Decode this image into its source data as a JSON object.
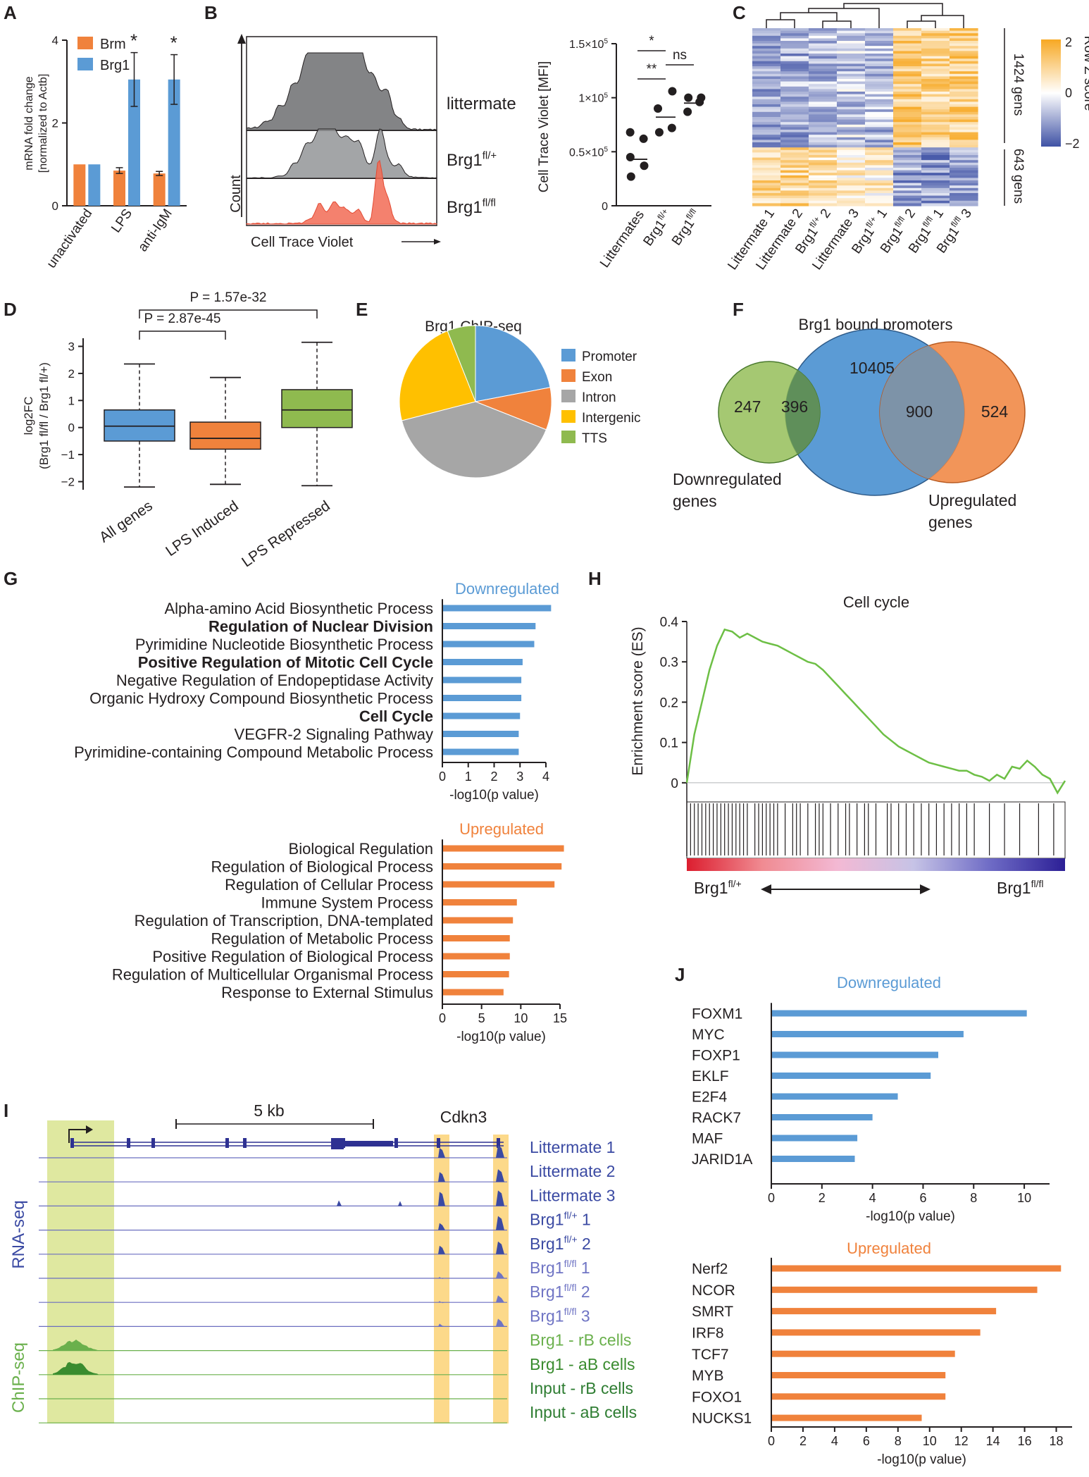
{
  "chart_data": [
    {
      "panel": "A",
      "type": "bar",
      "ylabel": "mRNA fold change",
      "ylabel2": "[normalized to Actb]",
      "ylim": [
        0,
        4
      ],
      "yticks": [
        0,
        2,
        4
      ],
      "categories": [
        "unactivated",
        "LPS",
        "anti-IgM"
      ],
      "series": [
        {
          "name": "Brm",
          "color": "#f0823c",
          "values": [
            1.0,
            0.85,
            0.78
          ],
          "errors": [
            0,
            0.07,
            0.05
          ]
        },
        {
          "name": "Brg1",
          "color": "#5b9bd5",
          "values": [
            1.0,
            3.05,
            3.05
          ],
          "errors": [
            0,
            0.65,
            0.6
          ]
        }
      ],
      "significance": [
        "",
        "*",
        "*"
      ]
    },
    {
      "panel": "B-hist",
      "type": "area",
      "xlabel": "Cell Trace Violet",
      "ylabel": "Count",
      "tracks": [
        {
          "name": "littermate",
          "base": "Brg1",
          "sup": "",
          "color": "#6d6e71"
        },
        {
          "name": "Brg1fl/+",
          "base": "Brg1",
          "sup": "fl/+",
          "color": "#939598"
        },
        {
          "name": "Brg1fl/fl",
          "base": "Brg1",
          "sup": "fl/fl",
          "color": "#f26b55"
        }
      ]
    },
    {
      "panel": "B-dot",
      "type": "scatter",
      "ylabel": "Cell Trace Violet [MFI]",
      "ylim": [
        0,
        150000
      ],
      "ytick_values": [
        0,
        50000,
        100000,
        150000
      ],
      "yticks": [
        {
          "base": "0",
          "exp": ""
        },
        {
          "base": "0.5×10",
          "exp": "5"
        },
        {
          "base": "1×10",
          "exp": "5"
        },
        {
          "base": "1.5×10",
          "exp": "5"
        }
      ],
      "groups": [
        {
          "base": "Littermates",
          "sup": "",
          "values": [
            27000,
            37000,
            45000,
            62000,
            68000
          ],
          "mean": 43000
        },
        {
          "base": "Brg1",
          "sup": "fl/+",
          "values": [
            68000,
            72000,
            90000,
            106000
          ],
          "mean": 82000
        },
        {
          "base": "Brg1",
          "sup": "fl/fl",
          "values": [
            87000,
            96000,
            100000,
            100000
          ],
          "mean": 95000
        }
      ],
      "significance": [
        {
          "label": "*",
          "from": 0,
          "to": 1
        },
        {
          "label": "**",
          "from": 0,
          "to": 1
        },
        {
          "label": "ns",
          "from": 1,
          "to": 2
        }
      ]
    },
    {
      "panel": "C",
      "type": "heatmap",
      "columns": [
        {
          "base": "Littermate 1",
          "sup": ""
        },
        {
          "base": "Littermate 2",
          "sup": ""
        },
        {
          "base": "Brg1",
          "sup": "fl/+",
          "suffix": " 2"
        },
        {
          "base": "Littermate 3",
          "sup": ""
        },
        {
          "base": "Brg1",
          "sup": "fl/+",
          "suffix": " 1"
        },
        {
          "base": "Brg1",
          "sup": "fl/fl",
          "suffix": " 2"
        },
        {
          "base": "Brg1",
          "sup": "fl/fl",
          "suffix": " 1"
        },
        {
          "base": "Brg1",
          "sup": "fl/fl",
          "suffix": " 3"
        }
      ],
      "row_groups": [
        "1424 gens",
        "643 gens"
      ],
      "legend_title": "Row Z score",
      "legend_ticks": [
        "2",
        "0",
        "−2"
      ],
      "colors": {
        "high": "#f7a823",
        "mid": "#ffffff",
        "low": "#3f52a5"
      }
    },
    {
      "panel": "D",
      "type": "box",
      "ylabel": "log2FC",
      "ylabel2": "(Brg1 fl/fl / Brg1 fl/+)",
      "ylim": [
        -2.3,
        3.3
      ],
      "yticks": [
        "−2",
        "−1",
        "0",
        "1",
        "2",
        "3"
      ],
      "ytick_values": [
        -2,
        -1,
        0,
        1,
        2,
        3
      ],
      "categories": [
        "All genes",
        "LPS Induced",
        "LPS Repressed"
      ],
      "boxes": [
        {
          "color": "#5b9bd5",
          "min": -2.2,
          "q1": -0.5,
          "median": 0.05,
          "q3": 0.65,
          "max": 2.35
        },
        {
          "color": "#f0823c",
          "min": -2.1,
          "q1": -0.8,
          "median": -0.4,
          "q3": 0.2,
          "max": 1.85
        },
        {
          "color": "#8fba4f",
          "min": -2.15,
          "q1": 0.0,
          "median": 0.65,
          "q3": 1.4,
          "max": 3.15
        }
      ],
      "pvalues": [
        {
          "label": "P = 2.87e-45",
          "from": 0,
          "to": 1
        },
        {
          "label": "P = 1.57e-32",
          "from": 0,
          "to": 2
        }
      ]
    },
    {
      "panel": "E",
      "type": "pie",
      "title": "Brg1 ChIP-seq",
      "labels": [
        "Promoter",
        "Exon",
        "Intron",
        "Intergenic",
        "TTS"
      ],
      "values": [
        22,
        9,
        40,
        23,
        6
      ],
      "colors": [
        "#5b9bd5",
        "#f0823c",
        "#a6a6a6",
        "#ffc000",
        "#8fba4f"
      ]
    },
    {
      "panel": "F",
      "type": "venn",
      "title": "Brg1 bound promoters",
      "sets": [
        {
          "name_lines": [
            "Downregulated",
            "genes"
          ],
          "color": "#8fba4f"
        },
        {
          "name_lines": [],
          "color": "#5b9bd5"
        },
        {
          "name_lines": [
            "Upregulated",
            "genes"
          ],
          "color": "#f0823c"
        }
      ],
      "counts": {
        "down_only": "247",
        "down_bound": "396",
        "bound_only": "10405",
        "up_bound": "900",
        "up_only": "524"
      }
    },
    {
      "panel": "G-down",
      "type": "bar",
      "title": "Downregulated",
      "color": "#5b9bd5",
      "title_color": "#5b9bd5",
      "xlabel": "-log10(p value)",
      "xlim": [
        0,
        4
      ],
      "xticks": [
        0,
        1,
        2,
        3,
        4
      ],
      "categories": [
        "Alpha-amino Acid Biosynthetic Process",
        "Regulation of Nuclear Division",
        "Pyrimidine Nucleotide Biosynthetic Process",
        "Positive Regulation of Mitotic Cell Cycle",
        "Negative Regulation of Endopeptidase Activity",
        "Organic Hydroxy Compound Biosynthetic Process",
        "Cell Cycle",
        "VEGFR-2 Signaling Pathway",
        "Pyrimidine-containing Compound Metabolic Process"
      ],
      "bold": [
        false,
        true,
        false,
        true,
        false,
        false,
        true,
        false,
        false
      ],
      "values": [
        4.2,
        3.6,
        3.55,
        3.1,
        3.05,
        3.05,
        3.0,
        2.95,
        2.95
      ]
    },
    {
      "panel": "G-up",
      "type": "bar",
      "title": "Upregulated",
      "color": "#f0823c",
      "title_color": "#f0823c",
      "xlabel": "-log10(p value)",
      "xlim": [
        0,
        15
      ],
      "xticks": [
        0,
        5,
        10,
        15
      ],
      "categories": [
        "Biological Regulation",
        "Regulation of Biological Process",
        "Regulation of Cellular Process",
        "Immune System Process",
        "Regulation of Transcription, DNA-templated",
        "Regulation of Metabolic Process",
        "Positive Regulation of Biological Process",
        "Regulation of Multicellular Organismal Process",
        "Response to External Stimulus"
      ],
      "bold": [
        false,
        false,
        false,
        false,
        false,
        false,
        false,
        false,
        false
      ],
      "values": [
        15.5,
        15.2,
        14.3,
        9.5,
        9.0,
        8.6,
        8.6,
        8.5,
        7.8
      ]
    },
    {
      "panel": "H",
      "type": "line",
      "title": "Cell cycle",
      "ylabel": "Enrichment score (ES)",
      "ylim": [
        -0.03,
        0.4
      ],
      "yticks": [
        "0",
        "0.1",
        "0.2",
        "0.3",
        "0.4"
      ],
      "ytick_values": [
        0,
        0.1,
        0.2,
        0.3,
        0.4
      ],
      "x": [
        0,
        2,
        4,
        6,
        8,
        10,
        12,
        14,
        16,
        18,
        20,
        22,
        24,
        26,
        28,
        30,
        32,
        34,
        36,
        38,
        40,
        42,
        44,
        46,
        48,
        50,
        52,
        54,
        56,
        58,
        60,
        62,
        64,
        66,
        68,
        70,
        72,
        74,
        76,
        78,
        80,
        82,
        84,
        86,
        88,
        90,
        92,
        94,
        96,
        98,
        100
      ],
      "es": [
        0.0,
        0.12,
        0.2,
        0.28,
        0.34,
        0.38,
        0.375,
        0.36,
        0.37,
        0.36,
        0.35,
        0.345,
        0.34,
        0.33,
        0.32,
        0.31,
        0.3,
        0.295,
        0.28,
        0.26,
        0.24,
        0.22,
        0.2,
        0.18,
        0.16,
        0.14,
        0.12,
        0.105,
        0.09,
        0.08,
        0.07,
        0.06,
        0.05,
        0.045,
        0.04,
        0.035,
        0.03,
        0.03,
        0.02,
        0.015,
        0.005,
        0.02,
        0.01,
        0.04,
        0.035,
        0.055,
        0.04,
        0.02,
        0.01,
        -0.025,
        0.005
      ],
      "hits": [
        1,
        2,
        3,
        4,
        5,
        6,
        7,
        8,
        9,
        10,
        11,
        12,
        13,
        14,
        15,
        16,
        18,
        19,
        20,
        21,
        22,
        23,
        24,
        26,
        28,
        29,
        30,
        32,
        34,
        35,
        36,
        38,
        40,
        42,
        43,
        45,
        47,
        48,
        50,
        53,
        54,
        56,
        58,
        60,
        62,
        64,
        66,
        68,
        70,
        72,
        74,
        76,
        80,
        84,
        88,
        93,
        97
      ],
      "gradient": [
        "#dc1e2f",
        "#f08b92",
        "#f3b9d4",
        "#c6c3e6",
        "#6f6cc6",
        "#2c1f96"
      ],
      "left_label": {
        "base": "Brg1",
        "sup": "fl/+"
      },
      "right_label": {
        "base": "Brg1",
        "sup": "fl/fl"
      }
    },
    {
      "panel": "I",
      "type": "genome-tracks",
      "scale": "5 kb",
      "gene": "Cdkn3",
      "side_labels": {
        "rna": "RNA-seq",
        "chip": "ChIP-seq"
      },
      "tracks": [
        {
          "base": "Littermate 1",
          "sup": "",
          "color": "#3b4aa3"
        },
        {
          "base": "Littermate 2",
          "sup": "",
          "color": "#3b4aa3"
        },
        {
          "base": "Littermate 3",
          "sup": "",
          "color": "#3b4aa3"
        },
        {
          "base": "Brg1",
          "sup": "fl/+",
          "suffix": " 1",
          "color": "#3b4aa3"
        },
        {
          "base": "Brg1",
          "sup": "fl/+",
          "suffix": " 2",
          "color": "#3b4aa3"
        },
        {
          "base": "Brg1",
          "sup": "fl/fl",
          "suffix": " 1",
          "color": "#6f74c4"
        },
        {
          "base": "Brg1",
          "sup": "fl/fl",
          "suffix": " 2",
          "color": "#6f74c4"
        },
        {
          "base": "Brg1",
          "sup": "fl/fl",
          "suffix": " 3",
          "color": "#6f74c4"
        },
        {
          "base": "Brg1 - rB cells",
          "sup": "",
          "color": "#6ab04c"
        },
        {
          "base": "Brg1 - aB cells",
          "sup": "",
          "color": "#3a8c2f"
        },
        {
          "base": "Input - rB cells",
          "sup": "",
          "color": "#2e7d32"
        },
        {
          "base": "Input - aB cells",
          "sup": "",
          "color": "#2e7d32"
        }
      ]
    },
    {
      "panel": "J-down",
      "type": "bar",
      "title": "Downregulated",
      "color": "#5b9bd5",
      "title_color": "#5b9bd5",
      "xlabel": "-log10(p value)",
      "xlim": [
        0,
        11
      ],
      "xticks": [
        0,
        2,
        4,
        6,
        8,
        10
      ],
      "categories": [
        "FOXM1",
        "MYC",
        "FOXP1",
        "EKLF",
        "E2F4",
        "RACK7",
        "MAF",
        "JARID1A"
      ],
      "values": [
        10.1,
        7.6,
        6.6,
        6.3,
        5.0,
        4.0,
        3.4,
        3.3
      ]
    },
    {
      "panel": "J-up",
      "type": "bar",
      "title": "Upregulated",
      "color": "#f0823c",
      "title_color": "#f0823c",
      "xlabel": "-log10(p value)",
      "xlim": [
        0,
        19
      ],
      "xticks": [
        0,
        2,
        4,
        6,
        8,
        10,
        12,
        14,
        16,
        18
      ],
      "categories": [
        "Nerf2",
        "NCOR",
        "SMRT",
        "IRF8",
        "TCF7",
        "MYB",
        "FOXO1",
        "NUCKS1"
      ],
      "values": [
        18.3,
        16.8,
        14.2,
        13.2,
        11.6,
        11.0,
        11.0,
        9.5
      ]
    }
  ],
  "panel_labels": [
    "A",
    "B",
    "C",
    "D",
    "E",
    "F",
    "G",
    "H",
    "I",
    "J"
  ]
}
